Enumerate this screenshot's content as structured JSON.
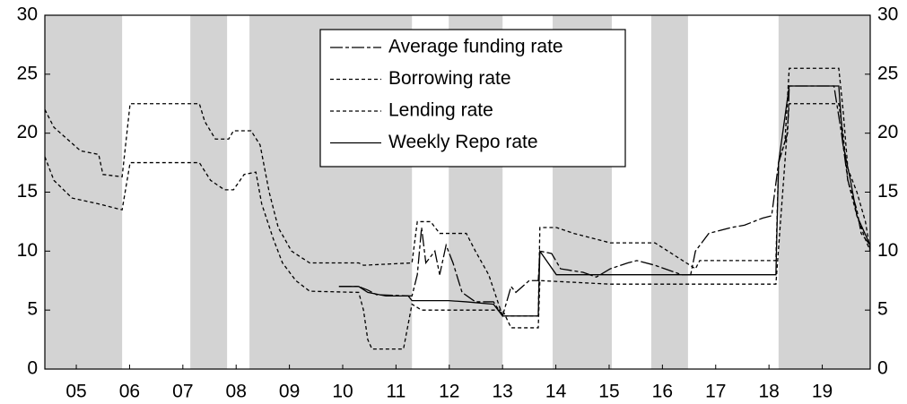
{
  "chart_data": {
    "type": "line",
    "xlim": [
      4.91,
      20.4
    ],
    "xticks": [
      {
        "value": 5.5,
        "label": "05"
      },
      {
        "value": 6.5,
        "label": "06"
      },
      {
        "value": 7.5,
        "label": "07"
      },
      {
        "value": 8.5,
        "label": "08"
      },
      {
        "value": 9.5,
        "label": "09"
      },
      {
        "value": 10.5,
        "label": "10"
      },
      {
        "value": 11.5,
        "label": "11"
      },
      {
        "value": 12.5,
        "label": "12"
      },
      {
        "value": 13.5,
        "label": "13"
      },
      {
        "value": 14.5,
        "label": "14"
      },
      {
        "value": 15.5,
        "label": "15"
      },
      {
        "value": 16.5,
        "label": "16"
      },
      {
        "value": 17.5,
        "label": "17"
      },
      {
        "value": 18.5,
        "label": "18"
      },
      {
        "value": 19.5,
        "label": "19"
      }
    ],
    "ylim": [
      0,
      30
    ],
    "yticks": [
      0,
      5,
      10,
      15,
      20,
      25,
      30
    ],
    "y2lim": [
      0,
      30
    ],
    "y2ticks": [
      0,
      5,
      10,
      15,
      20,
      25,
      30
    ],
    "shaded_periods": [
      [
        4.91,
        6.36
      ],
      [
        7.64,
        8.33
      ],
      [
        8.75,
        11.8
      ],
      [
        12.49,
        13.5
      ],
      [
        14.44,
        15.55
      ],
      [
        16.29,
        16.98
      ],
      [
        18.68,
        20.4
      ]
    ],
    "shade_color": "#d3d3d3",
    "legend": "top",
    "series": [
      {
        "name": "Average funding rate",
        "color": "#000000",
        "dash": "14,3,4,3",
        "x": [
          10.43,
          10.8,
          10.97,
          11.14,
          11.8,
          11.9,
          11.98,
          12.06,
          12.23,
          12.32,
          12.44,
          12.57,
          12.74,
          12.99,
          13.33,
          13.5,
          13.66,
          13.75,
          14.0,
          14.17,
          14.2,
          14.42,
          14.59,
          15.01,
          15.26,
          15.52,
          15.85,
          16.02,
          16.36,
          16.86,
          17.03,
          17.12,
          17.37,
          17.79,
          18.04,
          18.38,
          18.55,
          18.68,
          18.85,
          18.88,
          19.72,
          19.86,
          19.98,
          20.15,
          20.23,
          20.4
        ],
        "values": [
          7,
          7,
          6.7,
          6.3,
          6.2,
          8,
          12,
          9,
          10,
          8,
          10.5,
          9,
          6.5,
          5.7,
          5.7,
          4.5,
          7,
          6.5,
          7.5,
          7.5,
          10,
          9.8,
          8.5,
          8.2,
          7.8,
          8.5,
          9,
          9.2,
          8.8,
          8,
          8,
          10,
          11.5,
          12,
          12.2,
          12.8,
          13,
          17.5,
          20,
          24,
          24,
          20,
          16,
          13.5,
          11.5,
          10.5
        ]
      },
      {
        "name": "Borrowing rate",
        "color": "#000000",
        "dash": "4,3",
        "x": [
          4.91,
          5.08,
          5.58,
          5.92,
          6.0,
          6.36,
          6.51,
          7.81,
          7.91,
          8.11,
          8.36,
          8.45,
          8.78,
          8.95,
          9.12,
          9.29,
          9.54,
          9.88,
          10.8,
          10.89,
          11.8,
          11.9,
          12.15,
          12.32,
          12.82,
          12.99,
          13.24,
          13.5,
          14.17,
          14.2,
          14.51,
          14.84,
          15.52,
          16.36,
          16.95,
          17.12,
          17.2,
          18.63,
          18.68,
          18.8,
          18.88,
          19.81,
          19.89,
          19.98,
          20.15,
          20.31,
          20.4
        ],
        "values": [
          22,
          20.5,
          18.5,
          18.2,
          16.5,
          16.3,
          22.5,
          22.5,
          21,
          19.5,
          19.5,
          20.2,
          20.2,
          19,
          15,
          12,
          10,
          9,
          9,
          8.8,
          9,
          12.5,
          12.5,
          11.5,
          11.5,
          10,
          8,
          4.5,
          4.5,
          12,
          12,
          11.5,
          10.7,
          10.7,
          9,
          8.5,
          9.2,
          9.2,
          17.5,
          19.3,
          25.5,
          25.5,
          22,
          17,
          15,
          12.5,
          10
        ]
      },
      {
        "name": "Lending rate",
        "color": "#000000",
        "dash": "4,3",
        "x": [
          4.91,
          5.08,
          5.42,
          5.92,
          6.36,
          6.51,
          7.81,
          8.02,
          8.28,
          8.45,
          8.65,
          8.87,
          8.98,
          9.2,
          9.37,
          9.62,
          9.88,
          10.8,
          10.89,
          10.97,
          11.05,
          11.64,
          11.8,
          11.98,
          13.5,
          13.66,
          14.17,
          14.2,
          15.52,
          18.63,
          18.88,
          19.81,
          19.89,
          19.98,
          20.15,
          20.31,
          20.4
        ],
        "values": [
          18,
          16,
          14.5,
          14,
          13.5,
          17.5,
          17.5,
          16,
          15.2,
          15.2,
          16.5,
          16.7,
          14,
          11,
          9,
          7.5,
          6.6,
          6.5,
          5,
          2.5,
          1.7,
          1.7,
          5.5,
          5,
          5,
          3.5,
          3.5,
          7.5,
          7.2,
          7.2,
          22.5,
          22.5,
          20,
          16,
          13,
          11,
          10
        ]
      },
      {
        "name": "Weekly Repo rate",
        "color": "#000000",
        "dash": "none",
        "x": [
          10.43,
          10.8,
          10.97,
          11.31,
          11.73,
          11.8,
          12.49,
          12.82,
          13.33,
          13.5,
          14.17,
          14.2,
          14.51,
          18.63,
          18.68,
          18.88,
          19.81,
          19.89,
          20.03,
          20.15,
          20.4
        ],
        "values": [
          7,
          7,
          6.5,
          6.2,
          6.2,
          5.8,
          5.8,
          5.7,
          5.5,
          4.5,
          4.5,
          10,
          8,
          8,
          17.5,
          24,
          24,
          19,
          16,
          13,
          10.5
        ]
      }
    ]
  }
}
